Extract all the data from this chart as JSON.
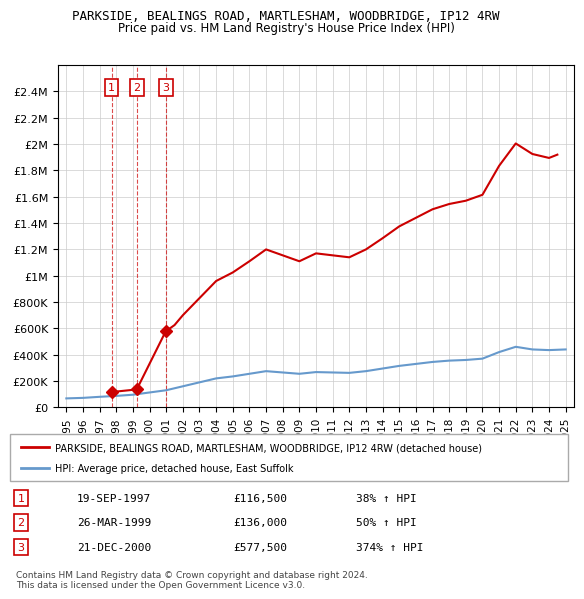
{
  "title1": "PARKSIDE, BEALINGS ROAD, MARTLESHAM, WOODBRIDGE, IP12 4RW",
  "title2": "Price paid vs. HM Land Registry's House Price Index (HPI)",
  "legend_property": "PARKSIDE, BEALINGS ROAD, MARTLESHAM, WOODBRIDGE, IP12 4RW (detached house)",
  "legend_hpi": "HPI: Average price, detached house, East Suffolk",
  "footnote": "Contains HM Land Registry data © Crown copyright and database right 2024.\nThis data is licensed under the Open Government Licence v3.0.",
  "sales": [
    {
      "label": "1",
      "date_num": 1997.72,
      "price": 116500,
      "hpi_pct": "38% ↑ HPI",
      "date_str": "19-SEP-1997",
      "price_str": "£116,500"
    },
    {
      "label": "2",
      "date_num": 1999.23,
      "price": 136000,
      "hpi_pct": "50% ↑ HPI",
      "date_str": "26-MAR-1999",
      "price_str": "£136,000"
    },
    {
      "label": "3",
      "date_num": 2000.97,
      "price": 577500,
      "hpi_pct": "374% ↑ HPI",
      "date_str": "21-DEC-2000",
      "price_str": "£577,500"
    }
  ],
  "hpi_line": {
    "x": [
      1995,
      1996,
      1997,
      1998,
      1999,
      2000,
      2001,
      2002,
      2003,
      2004,
      2005,
      2006,
      2007,
      2008,
      2009,
      2010,
      2011,
      2012,
      2013,
      2014,
      2015,
      2016,
      2017,
      2018,
      2019,
      2020,
      2021,
      2022,
      2023,
      2024,
      2025
    ],
    "y": [
      68000,
      72000,
      80000,
      87000,
      96000,
      113000,
      130000,
      160000,
      190000,
      220000,
      235000,
      255000,
      275000,
      265000,
      255000,
      268000,
      265000,
      262000,
      275000,
      295000,
      315000,
      330000,
      345000,
      355000,
      360000,
      370000,
      420000,
      460000,
      440000,
      435000,
      440000
    ]
  },
  "property_line": {
    "x": [
      1997.72,
      1999.23,
      2000.97,
      2001.5,
      2002,
      2003,
      2004,
      2005,
      2006,
      2007,
      2008,
      2009,
      2010,
      2011,
      2012,
      2013,
      2014,
      2015,
      2016,
      2017,
      2018,
      2019,
      2020,
      2021,
      2022,
      2023,
      2024,
      2024.5
    ],
    "y": [
      116500,
      136000,
      577500,
      625000,
      700000,
      830000,
      960000,
      1025000,
      1110000,
      1200000,
      1155000,
      1110000,
      1170000,
      1155000,
      1140000,
      1200000,
      1285000,
      1375000,
      1440000,
      1505000,
      1545000,
      1570000,
      1615000,
      1835000,
      2005000,
      1925000,
      1895000,
      1920000
    ]
  },
  "xlim": [
    1994.5,
    2025.5
  ],
  "ylim": [
    0,
    2600000
  ],
  "yticks": [
    0,
    200000,
    400000,
    600000,
    800000,
    1000000,
    1200000,
    1400000,
    1600000,
    1800000,
    2000000,
    2200000,
    2400000
  ],
  "xticks": [
    1995,
    1996,
    1997,
    1998,
    1999,
    2000,
    2001,
    2002,
    2003,
    2004,
    2005,
    2006,
    2007,
    2008,
    2009,
    2010,
    2011,
    2012,
    2013,
    2014,
    2015,
    2016,
    2017,
    2018,
    2019,
    2020,
    2021,
    2022,
    2023,
    2024,
    2025
  ],
  "property_color": "#cc0000",
  "hpi_color": "#6699cc",
  "marker_color": "#cc0000",
  "label_box_color": "#cc0000",
  "grid_color": "#cccccc",
  "bg_color": "#ffffff"
}
